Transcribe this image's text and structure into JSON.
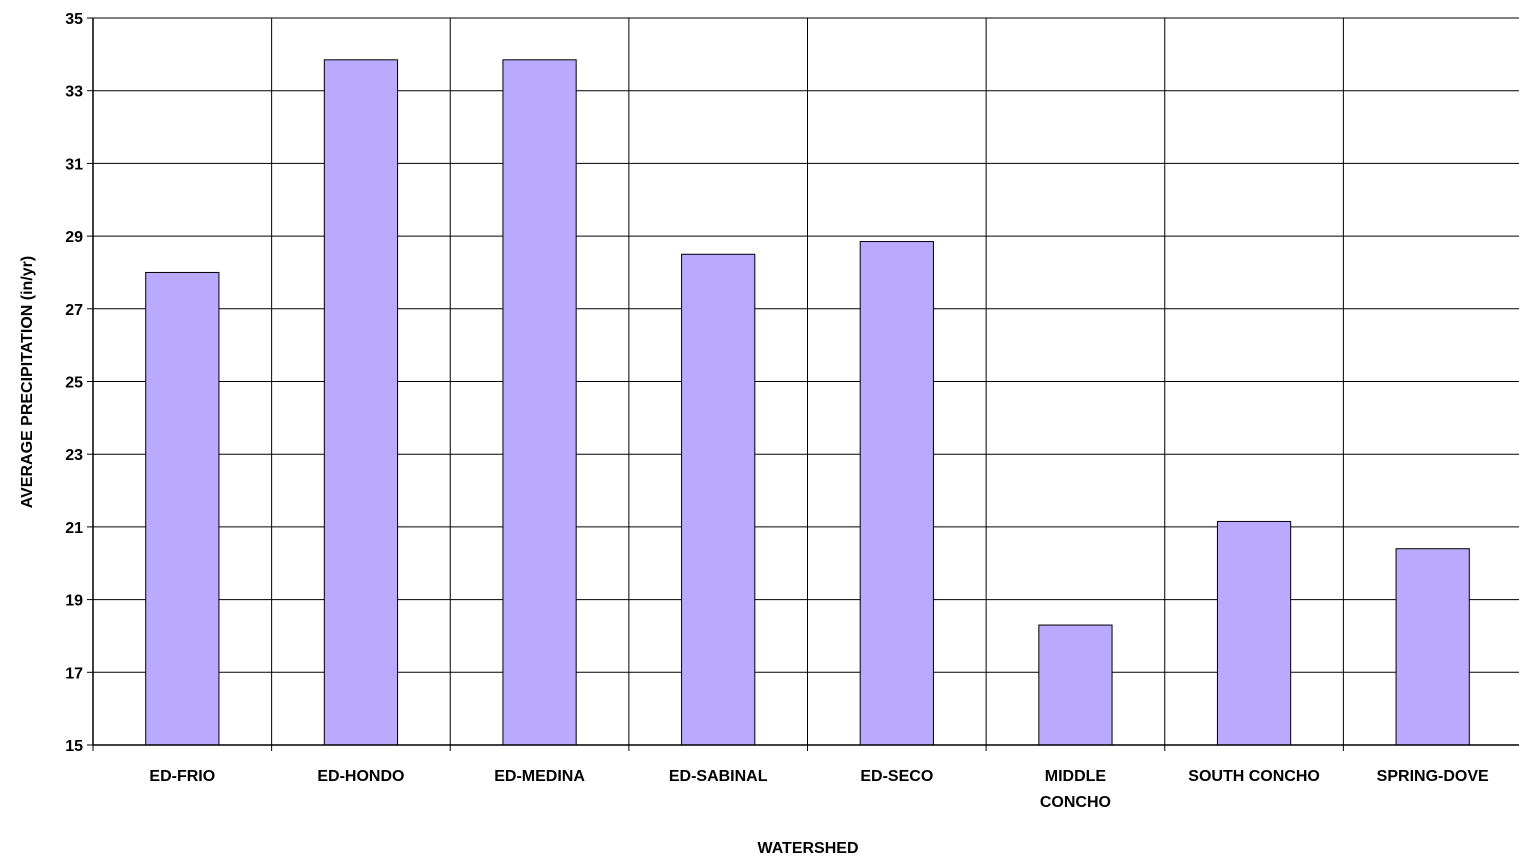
{
  "chart_data": {
    "type": "bar",
    "title": "",
    "xlabel": "WATERSHED",
    "ylabel": "AVERAGE PRECIPITATION (in/yr)",
    "categories": [
      [
        "ED-FRIO"
      ],
      [
        "ED-HONDO"
      ],
      [
        "ED-MEDINA"
      ],
      [
        "ED-SABINAL"
      ],
      [
        "ED-SECO"
      ],
      [
        "MIDDLE",
        "CONCHO"
      ],
      [
        "SOUTH CONCHO"
      ],
      [
        "SPRING-DOVE"
      ]
    ],
    "values": [
      28.0,
      33.85,
      33.85,
      28.5,
      28.85,
      18.3,
      21.15,
      20.4
    ],
    "ylim": [
      15,
      35
    ],
    "yticks": [
      15,
      17,
      19,
      21,
      23,
      25,
      27,
      29,
      31,
      33,
      35
    ],
    "grid": true,
    "legend": "none",
    "bar_color": "#b9a9ff",
    "bar_stroke": "#000000",
    "grid_color": "#000000"
  }
}
